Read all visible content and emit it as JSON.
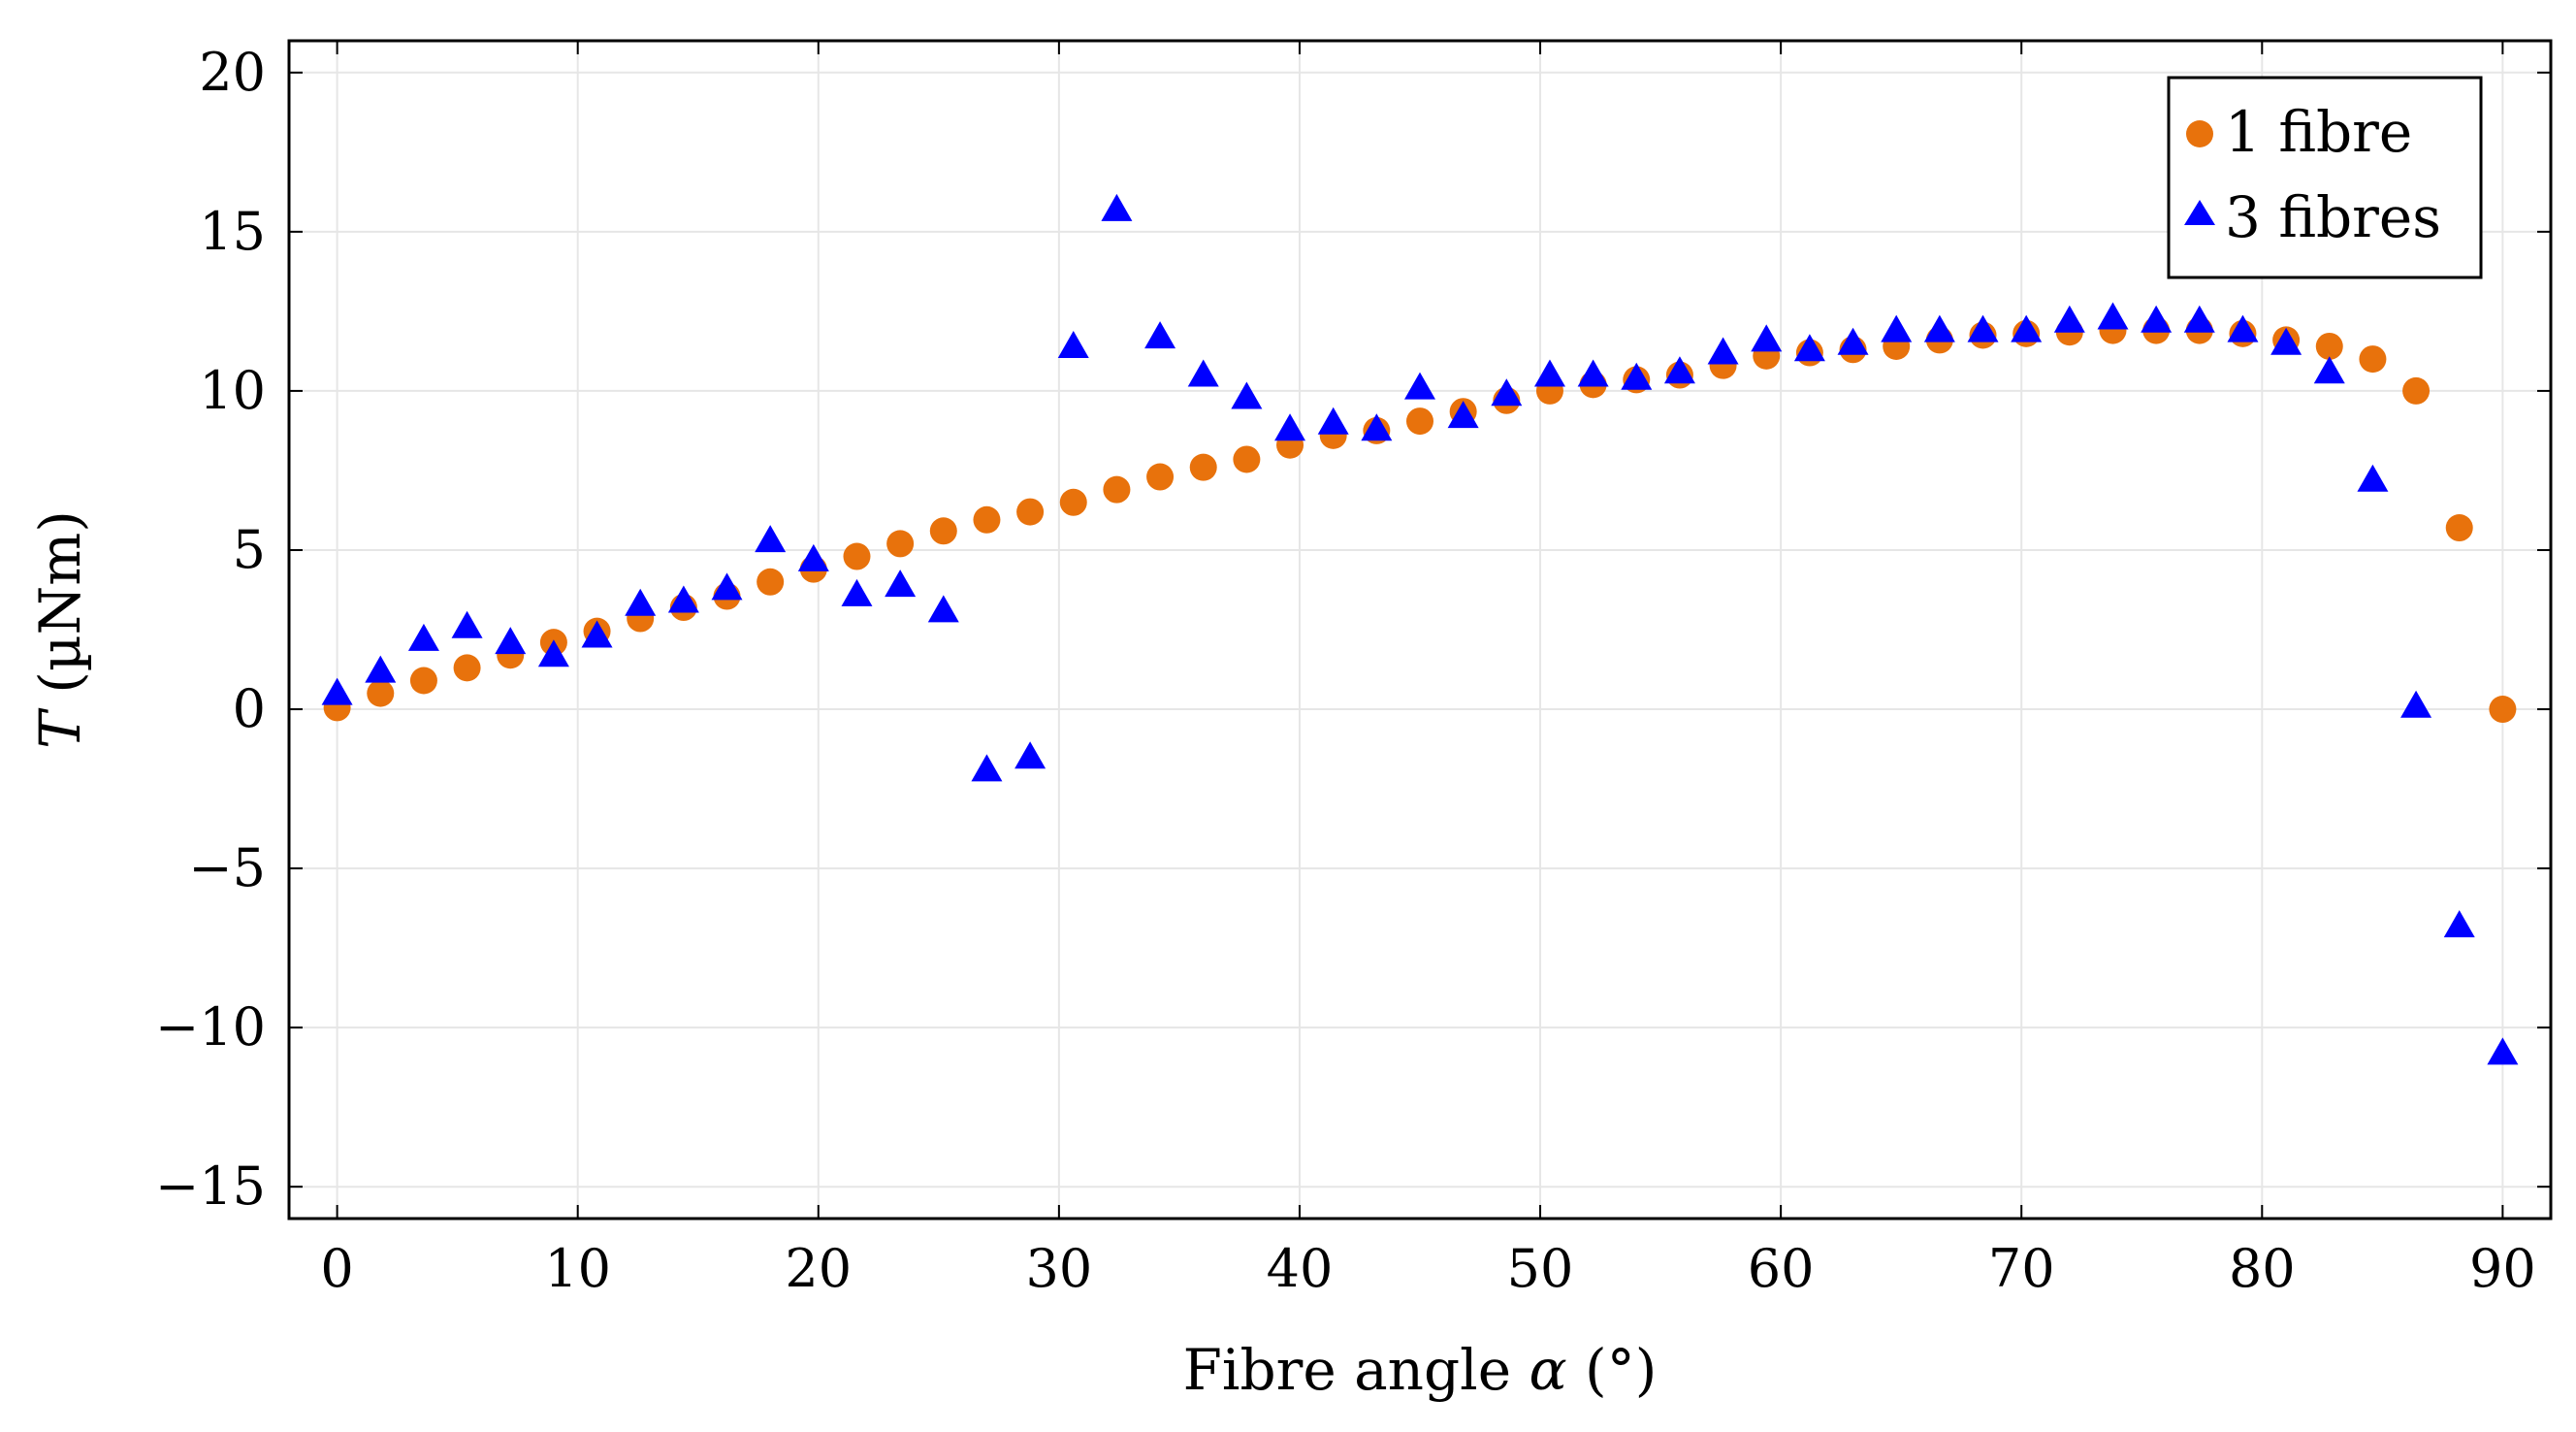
{
  "chart_data": {
    "type": "scatter",
    "title": "",
    "xlabel": "Fibre angle α (°)",
    "ylabel": "T (µNm)",
    "ylabel_var": "T",
    "ylabel_unit": " (µNm)",
    "xlabel_text": "Fibre angle ",
    "xlabel_var": "α",
    "xlabel_unit": " (°)",
    "xlim": [
      -2,
      92
    ],
    "ylim": [
      -16,
      21
    ],
    "xticks": [
      0,
      10,
      20,
      30,
      40,
      50,
      60,
      70,
      80,
      90
    ],
    "yticks": [
      -15,
      -10,
      -5,
      0,
      5,
      10,
      15,
      20
    ],
    "ytick_labels": [
      "−15",
      "−10",
      "−5",
      "0",
      "5",
      "10",
      "15",
      "20"
    ],
    "grid": true,
    "legend_position": "top-right",
    "series": [
      {
        "name": "1 fibre",
        "marker": "circle",
        "color": "#e8720c",
        "x": [
          0,
          1.8,
          3.6,
          5.4,
          7.2,
          9,
          10.8,
          12.6,
          14.4,
          16.2,
          18,
          19.8,
          21.6,
          23.4,
          25.2,
          27,
          28.8,
          30.6,
          32.4,
          34.2,
          36,
          37.8,
          39.6,
          41.4,
          43.2,
          45,
          46.8,
          48.6,
          50.4,
          52.2,
          54,
          55.8,
          57.6,
          59.4,
          61.2,
          63,
          64.8,
          66.6,
          68.4,
          70.2,
          72,
          73.8,
          75.6,
          77.4,
          79.2,
          81,
          82.8,
          84.6,
          86.4,
          88.2,
          90
        ],
        "y": [
          0.05,
          0.5,
          0.9,
          1.3,
          1.7,
          2.1,
          2.45,
          2.85,
          3.2,
          3.55,
          4.0,
          4.4,
          4.8,
          5.2,
          5.6,
          5.95,
          6.2,
          6.5,
          6.9,
          7.3,
          7.6,
          7.85,
          8.3,
          8.6,
          8.75,
          9.05,
          9.35,
          9.7,
          10.0,
          10.2,
          10.35,
          10.5,
          10.8,
          11.1,
          11.2,
          11.3,
          11.4,
          11.6,
          11.75,
          11.8,
          11.85,
          11.9,
          11.9,
          11.9,
          11.8,
          11.6,
          11.4,
          11.0,
          10.0,
          5.7,
          0.0
        ]
      },
      {
        "name": "3 fibres",
        "marker": "triangle",
        "color": "#0000ff",
        "x": [
          0,
          1.8,
          3.6,
          5.4,
          7.2,
          9,
          10.8,
          12.6,
          14.4,
          16.2,
          18,
          19.8,
          21.6,
          23.4,
          25.2,
          27,
          28.8,
          30.6,
          32.4,
          34.2,
          36,
          37.8,
          39.6,
          41.4,
          43.2,
          45,
          46.8,
          48.6,
          50.4,
          52.2,
          54,
          55.8,
          57.6,
          59.4,
          61.2,
          63,
          64.8,
          66.6,
          68.4,
          70.2,
          72,
          73.8,
          75.6,
          77.4,
          79.2,
          81,
          82.8,
          84.6,
          86.4,
          88.2,
          90
        ],
        "y": [
          0.5,
          1.2,
          2.2,
          2.6,
          2.1,
          1.7,
          2.3,
          3.3,
          3.4,
          3.8,
          5.3,
          4.7,
          3.6,
          3.9,
          3.1,
          -1.9,
          -1.5,
          11.4,
          15.7,
          11.7,
          10.5,
          9.8,
          8.8,
          9.0,
          8.8,
          10.1,
          9.2,
          9.9,
          10.5,
          10.5,
          10.4,
          10.6,
          11.2,
          11.6,
          11.3,
          11.5,
          11.9,
          11.9,
          11.9,
          11.9,
          12.2,
          12.3,
          12.2,
          12.2,
          11.9,
          11.5,
          10.6,
          7.2,
          0.1,
          -6.8,
          -10.8
        ]
      }
    ]
  }
}
